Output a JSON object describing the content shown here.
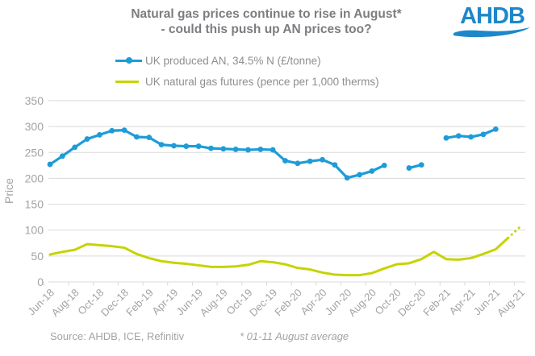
{
  "header": {
    "title_line1": "Natural gas prices continue to rise in August*",
    "title_line2": "- could this push up AN prices too?",
    "logo_text": "AHDB"
  },
  "legend": [
    {
      "label": "UK produced AN, 34.5% N (£/tonne)",
      "color": "#1d9cd8",
      "marker": true
    },
    {
      "label": "UK natural gas futures (pence per 1,000 therms)",
      "color": "#c5d400",
      "marker": false
    }
  ],
  "footer": {
    "source": "Source: AHDB, ICE, Refinitiv",
    "footnote": "* 01-11 August average"
  },
  "chart_data": {
    "type": "line",
    "title": "Natural gas prices continue to rise in August* - could this push up AN prices too?",
    "xlabel": "",
    "ylabel": "Price",
    "ylim": [
      0,
      350
    ],
    "ytick_step": 50,
    "grid": true,
    "grid_color": "#d9d9d9",
    "axis_text_color": "#a3a3a3",
    "legend_position": "top-left",
    "x_label_every": 2,
    "categories": [
      "Jun-18",
      "Jul-18",
      "Aug-18",
      "Sep-18",
      "Oct-18",
      "Nov-18",
      "Dec-18",
      "Jan-19",
      "Feb-19",
      "Mar-19",
      "Apr-19",
      "May-19",
      "Jun-19",
      "Jul-19",
      "Aug-19",
      "Sep-19",
      "Oct-19",
      "Nov-19",
      "Dec-19",
      "Jan-20",
      "Feb-20",
      "Mar-20",
      "Apr-20",
      "May-20",
      "Jun-20",
      "Jul-20",
      "Aug-20",
      "Sep-20",
      "Oct-20",
      "Nov-20",
      "Dec-20",
      "Jan-21",
      "Feb-21",
      "Mar-21",
      "Apr-21",
      "May-21",
      "Jun-21",
      "Jul-21",
      "Aug-21"
    ],
    "series": [
      {
        "name": "UK produced AN, 34.5% N (£/tonne)",
        "color": "#1d9cd8",
        "markers": true,
        "line_width": 3.2,
        "values": [
          227,
          243,
          260,
          276,
          284,
          292,
          293,
          280,
          279,
          265,
          263,
          262,
          262,
          258,
          257,
          256,
          255,
          256,
          255,
          234,
          229,
          233,
          236,
          226,
          201,
          207,
          214,
          225,
          null,
          220,
          226,
          null,
          278,
          282,
          280,
          285,
          295,
          null,
          null
        ]
      },
      {
        "name": "UK natural gas futures (pence per 1,000 therms)",
        "color": "#c5d400",
        "markers": false,
        "line_width": 3,
        "dotted_tail_from": 37,
        "values": [
          53,
          58,
          62,
          73,
          71,
          69,
          66,
          54,
          46,
          40,
          37,
          35,
          32,
          29,
          29,
          30,
          33,
          40,
          38,
          34,
          27,
          24,
          18,
          14,
          13,
          13,
          17,
          26,
          34,
          36,
          44,
          58,
          44,
          43,
          46,
          54,
          63,
          85,
          107
        ]
      }
    ]
  }
}
